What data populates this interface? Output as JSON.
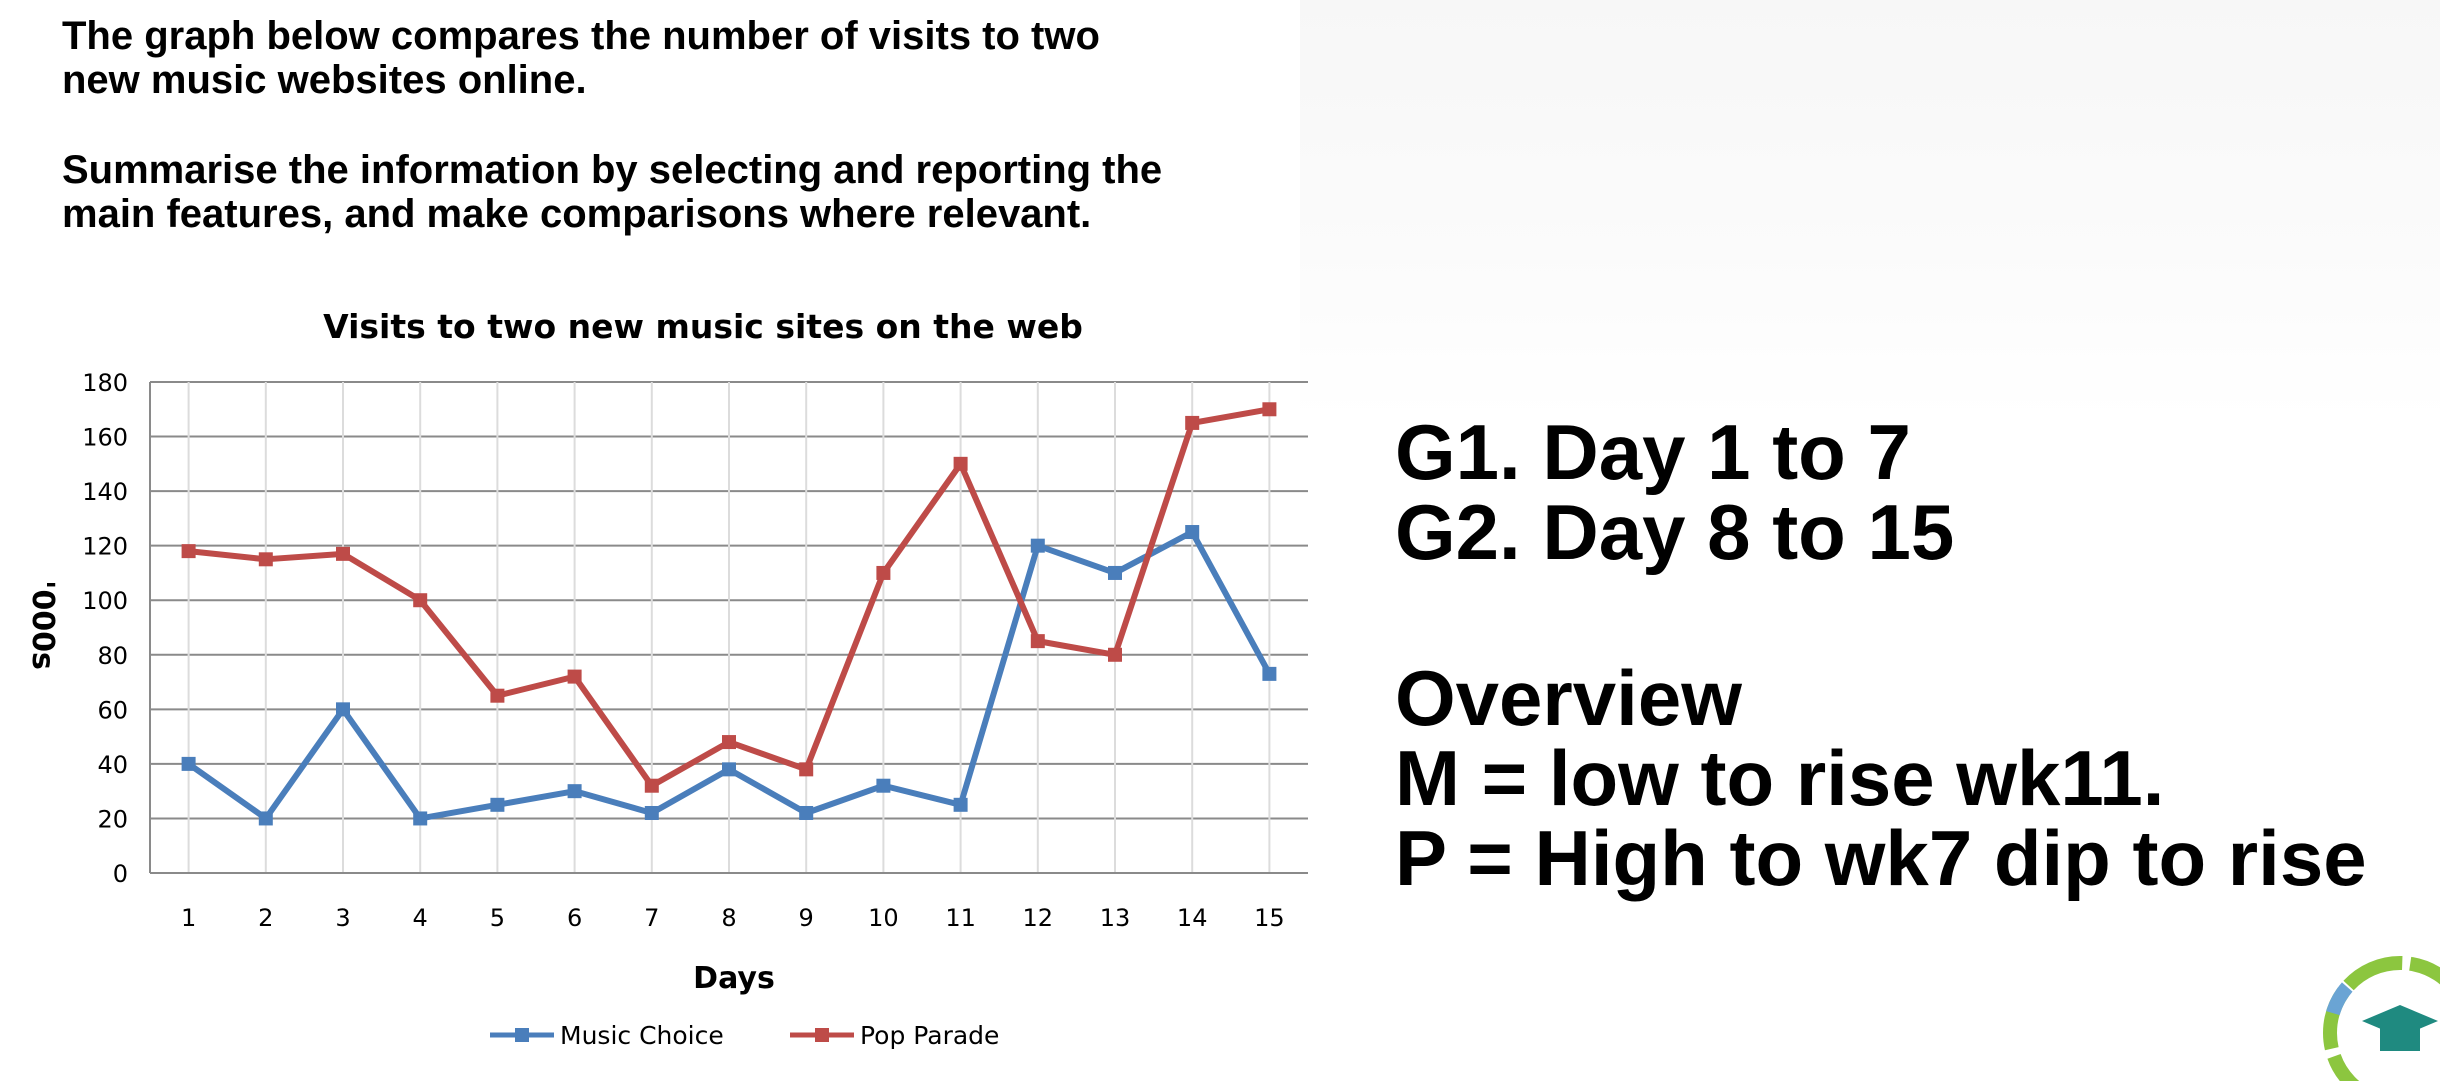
{
  "prompt": {
    "paragraph1_line1": "The graph below compares the number of visits to two",
    "paragraph1_line2": "new music websites online.",
    "paragraph2_line1": "Summarise the information by selecting and reporting the",
    "paragraph2_line2": "main features, and make comparisons where relevant."
  },
  "notes": {
    "g1": "G1. Day 1 to 7",
    "g2": "G2. Day 8 to 15",
    "overview_title": "Overview",
    "m_line": "M = low to rise wk11.",
    "p_line": "P = High to wk7 dip to rise"
  },
  "chart_data": {
    "type": "line",
    "title": "Visits to two new music sites on the web",
    "xlabel": "Days",
    "ylabel": "'000s",
    "categories": [
      "1",
      "2",
      "3",
      "4",
      "5",
      "6",
      "7",
      "8",
      "9",
      "10",
      "11",
      "12",
      "13",
      "14",
      "15"
    ],
    "ylim": [
      0,
      180
    ],
    "yticks": [
      "0",
      "20",
      "40",
      "60",
      "80",
      "100",
      "120",
      "140",
      "160",
      "180"
    ],
    "grid": true,
    "legend_position": "bottom",
    "series": [
      {
        "name": "Music Choice",
        "color": "#4a7ebb",
        "values": [
          40,
          20,
          60,
          20,
          25,
          30,
          22,
          38,
          22,
          32,
          25,
          120,
          110,
          125,
          73
        ]
      },
      {
        "name": "Pop Parade",
        "color": "#be4b48",
        "values": [
          118,
          115,
          117,
          100,
          65,
          72,
          32,
          48,
          38,
          110,
          150,
          85,
          80,
          165,
          170
        ]
      }
    ]
  },
  "colors": {
    "badge_teal": "#1f8a80",
    "badge_green": "#8cc63f",
    "badge_blue": "#6aa4d4"
  }
}
